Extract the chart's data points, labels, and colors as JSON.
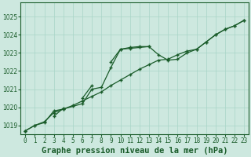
{
  "title": "Graphe pression niveau de la mer (hPa)",
  "background_color": "#cde8df",
  "grid_color": "#a8d5c8",
  "line_color": "#1a5c2a",
  "x_labels": [
    "0",
    "1",
    "2",
    "3",
    "4",
    "5",
    "6",
    "7",
    "8",
    "9",
    "10",
    "11",
    "12",
    "13",
    "14",
    "15",
    "16",
    "17",
    "18",
    "19",
    "20",
    "21",
    "22",
    "23"
  ],
  "y_min": 1018.5,
  "y_max": 1025.8,
  "y_ticks": [
    1019,
    1020,
    1021,
    1022,
    1023,
    1024,
    1025
  ],
  "series1": [
    1018.7,
    1019.0,
    1019.2,
    1019.7,
    1019.9,
    1020.1,
    1020.35,
    1020.6,
    1020.85,
    1021.2,
    1021.5,
    1021.8,
    1022.1,
    1022.35,
    1022.6,
    1022.65,
    1022.9,
    1023.1,
    1023.2,
    1023.6,
    1024.0,
    1024.3,
    1024.5,
    1024.8
  ],
  "series2": [
    1018.7,
    1019.0,
    1019.15,
    1019.8,
    1019.9,
    1020.05,
    1020.2,
    1021.0,
    1021.1,
    1022.2,
    1023.2,
    1023.3,
    1023.35,
    1023.35,
    1022.9,
    1022.6,
    1022.65,
    1023.0,
    1023.2,
    1023.6,
    1024.0,
    1024.3,
    1024.5,
    1024.8
  ],
  "series3": [
    1018.7,
    null,
    null,
    1019.5,
    1019.95,
    null,
    1020.5,
    1021.2,
    null,
    1022.5,
    1023.2,
    1023.25,
    1023.3,
    1023.35,
    null,
    null,
    null,
    null,
    null,
    null,
    null,
    null,
    null,
    null
  ],
  "marker_size": 2.5,
  "line_width": 0.9,
  "title_fontsize": 7.5,
  "tick_fontsize": 5.5
}
